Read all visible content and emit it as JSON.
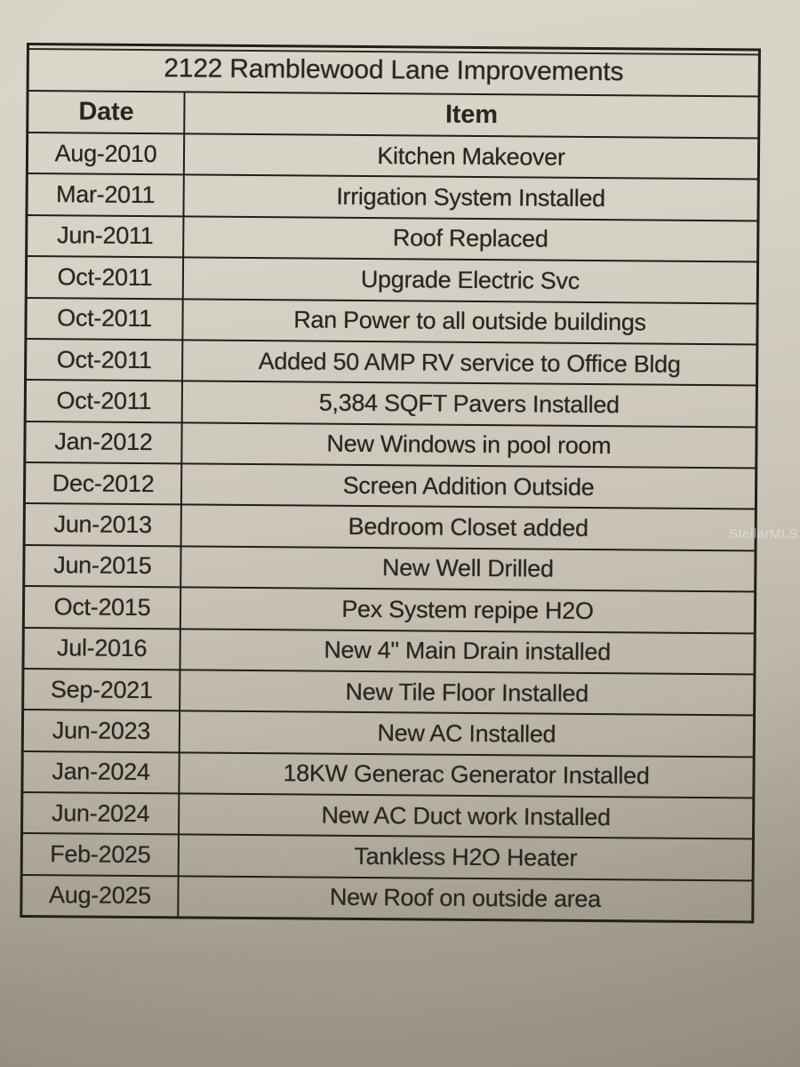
{
  "table": {
    "title": "2122 Ramblewood Lane Improvements",
    "columns": {
      "date": "Date",
      "item": "Item"
    },
    "rows": [
      {
        "date": "Aug-2010",
        "item": "Kitchen Makeover"
      },
      {
        "date": "Mar-2011",
        "item": "Irrigation System Installed"
      },
      {
        "date": "Jun-2011",
        "item": "Roof Replaced"
      },
      {
        "date": "Oct-2011",
        "item": "Upgrade Electric Svc"
      },
      {
        "date": "Oct-2011",
        "item": "Ran Power to all outside buildings"
      },
      {
        "date": "Oct-2011",
        "item": "Added 50 AMP RV service to Office Bldg"
      },
      {
        "date": "Oct-2011",
        "item": "5,384 SQFT Pavers Installed"
      },
      {
        "date": "Jan-2012",
        "item": "New Windows in pool room"
      },
      {
        "date": "Dec-2012",
        "item": "Screen Addition Outside"
      },
      {
        "date": "Jun-2013",
        "item": "Bedroom Closet added"
      },
      {
        "date": "Jun-2015",
        "item": "New Well Drilled"
      },
      {
        "date": "Oct-2015",
        "item": "Pex System repipe H2O"
      },
      {
        "date": "Jul-2016",
        "item": "New 4\" Main Drain installed"
      },
      {
        "date": "Sep-2021",
        "item": "New Tile Floor Installed"
      },
      {
        "date": "Jun-2023",
        "item": "New AC Installed"
      },
      {
        "date": "Jan-2024",
        "item": "18KW Generac Generator Installed"
      },
      {
        "date": "Jun-2024",
        "item": "New AC Duct work Installed"
      },
      {
        "date": "Feb-2025",
        "item": "Tankless H2O Heater"
      },
      {
        "date": "Aug-2025",
        "item": "New Roof on outside area"
      }
    ]
  },
  "watermark": "StellarMLS",
  "colors": {
    "paper_light": "#dad6ca",
    "paper_dark": "#a19c8e",
    "ink": "#282520",
    "border": "#211f1b"
  }
}
